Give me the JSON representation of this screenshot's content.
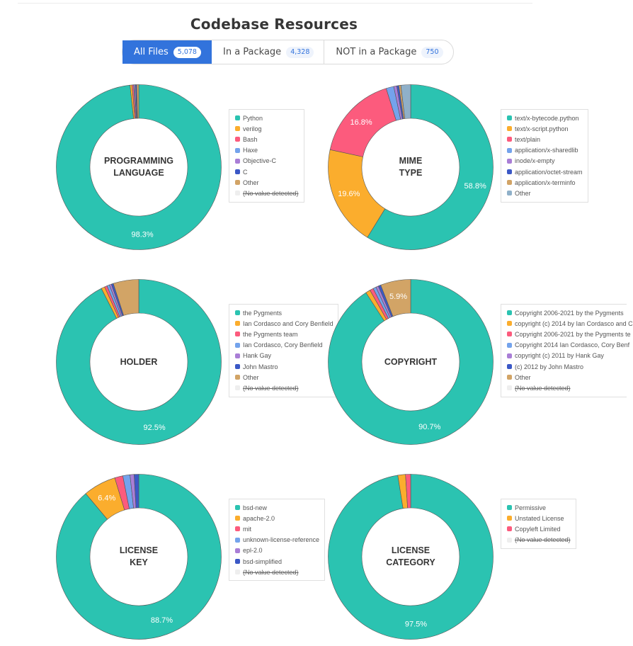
{
  "page": {
    "title": "Codebase Resources"
  },
  "tabs": [
    {
      "label": "All Files",
      "count": "5,078",
      "active": true
    },
    {
      "label": "In a Package",
      "count": "4,328",
      "active": false
    },
    {
      "label": "NOT in a Package",
      "count": "750",
      "active": false
    }
  ],
  "chart_data": [
    {
      "type": "pie",
      "center_label": "PROGRAMMING\nLANGUAGE",
      "categories": [
        "Python",
        "verilog",
        "Bash",
        "Haxe",
        "Objective-C",
        "C",
        "Other",
        "(No value detected)"
      ],
      "values": [
        98.3,
        0.4,
        0.3,
        0.2,
        0.2,
        0.2,
        0.4,
        0
      ],
      "colors": [
        "#2bc3b1",
        "#fbad2d",
        "#fc5b7d",
        "#74a3ec",
        "#a97ed6",
        "#3b58c6",
        "#d2a466",
        "#eeeeee"
      ],
      "hidden": [
        false,
        false,
        false,
        false,
        false,
        false,
        false,
        true
      ],
      "slice_labels": [
        "98.3%",
        "",
        "",
        "",
        "",
        "",
        "",
        ""
      ]
    },
    {
      "type": "pie",
      "center_label": "MIME\nTYPE",
      "categories": [
        "text/x-bytecode.python",
        "text/x-script.python",
        "text/plain",
        "application/x-sharedlib",
        "inode/x-empty",
        "application/octet-stream",
        "application/x-terminfo",
        "Other"
      ],
      "values": [
        58.8,
        19.6,
        16.8,
        1.5,
        0.6,
        0.4,
        0.4,
        1.9
      ],
      "colors": [
        "#2bc3b1",
        "#fbad2d",
        "#fc5b7d",
        "#74a3ec",
        "#a97ed6",
        "#3b58c6",
        "#d2a466",
        "#8fb0c9"
      ],
      "hidden": [
        false,
        false,
        false,
        false,
        false,
        false,
        false,
        false
      ],
      "slice_labels": [
        "58.8%",
        "19.6%",
        "16.8%",
        "",
        "",
        "",
        "",
        ""
      ]
    },
    {
      "type": "pie",
      "center_label": "HOLDER",
      "categories": [
        "the Pygments",
        "Ian Cordasco and Cory Benfield",
        "the Pygments team",
        "Ian Cordasco, Cory Benfield",
        "Hank Gay",
        "John Mastro",
        "Other",
        "(No value detected)"
      ],
      "values": [
        92.5,
        0.7,
        0.5,
        0.5,
        0.4,
        0.4,
        5.0,
        0
      ],
      "colors": [
        "#2bc3b1",
        "#fbad2d",
        "#fc5b7d",
        "#74a3ec",
        "#a97ed6",
        "#3b58c6",
        "#d2a466",
        "#eeeeee"
      ],
      "hidden": [
        false,
        false,
        false,
        false,
        false,
        false,
        false,
        true
      ],
      "slice_labels": [
        "92.5%",
        "",
        "",
        "",
        "",
        "",
        "",
        ""
      ]
    },
    {
      "type": "pie",
      "center_label": "COPYRIGHT",
      "categories": [
        "Copyright 2006-2021 by the Pygments",
        "copyright (c) 2014 by Ian Cordasco and C",
        "Copyright 2006-2021 by the Pygments te",
        "Copyright 2014 Ian Cordasco, Cory Benf",
        "copyright (c) 2011 by Hank Gay",
        "(c) 2012 by John Mastro",
        "Other",
        "(No value detected)"
      ],
      "values": [
        90.7,
        0.9,
        0.7,
        0.6,
        0.5,
        0.5,
        5.9,
        0
      ],
      "colors": [
        "#2bc3b1",
        "#fbad2d",
        "#fc5b7d",
        "#74a3ec",
        "#a97ed6",
        "#3b58c6",
        "#d2a466",
        "#eeeeee"
      ],
      "hidden": [
        false,
        false,
        false,
        false,
        false,
        false,
        false,
        true
      ],
      "slice_labels": [
        "90.7%",
        "",
        "",
        "",
        "",
        "",
        "5.9%",
        ""
      ]
    },
    {
      "type": "pie",
      "center_label": "LICENSE\nKEY",
      "categories": [
        "bsd-new",
        "apache-2.0",
        "mit",
        "unknown-license-reference",
        "epl-2.0",
        "bsd-simplified",
        "(No value detected)"
      ],
      "values": [
        88.7,
        6.4,
        1.6,
        1.4,
        0.8,
        0.9,
        0
      ],
      "colors": [
        "#2bc3b1",
        "#fbad2d",
        "#fc5b7d",
        "#74a3ec",
        "#a97ed6",
        "#3b58c6",
        "#eeeeee"
      ],
      "hidden": [
        false,
        false,
        false,
        false,
        false,
        false,
        true
      ],
      "slice_labels": [
        "88.7%",
        "6.4%",
        "",
        "",
        "",
        "",
        ""
      ]
    },
    {
      "type": "pie",
      "center_label": "LICENSE\nCATEGORY",
      "categories": [
        "Permissive",
        "Unstated License",
        "Copyleft Limited",
        "(No value detected)"
      ],
      "values": [
        97.5,
        1.5,
        1.0,
        0
      ],
      "colors": [
        "#2bc3b1",
        "#fbad2d",
        "#fc5b7d",
        "#eeeeee"
      ],
      "hidden": [
        false,
        false,
        false,
        true
      ],
      "slice_labels": [
        "97.5%",
        "",
        "",
        ""
      ]
    }
  ]
}
